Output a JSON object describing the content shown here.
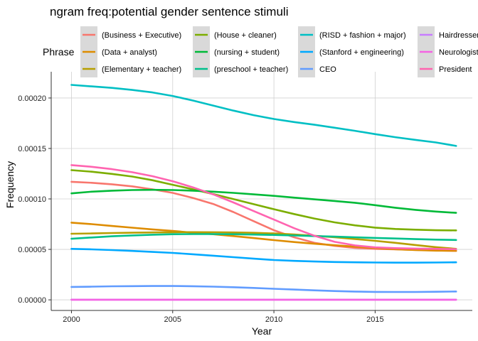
{
  "chart_data": {
    "type": "line",
    "title": "ngram freq:potential gender sentence stimuli",
    "xlabel": "Year",
    "ylabel": "Frequency",
    "xlim": [
      1999,
      2019.8
    ],
    "ylim": [
      -1.05e-05,
      0.000226
    ],
    "x_ticks": [
      2000,
      2005,
      2010,
      2015
    ],
    "x_tick_labels": [
      "2000",
      "2005",
      "2010",
      "2015"
    ],
    "y_ticks": [
      0,
      5e-05,
      0.0001,
      0.00015,
      0.0002
    ],
    "y_tick_labels": [
      "0.00000",
      "0.00005",
      "0.00010",
      "0.00015",
      "0.00020"
    ],
    "grid": true,
    "legend": {
      "title": "Phrase",
      "placement": "top"
    },
    "x": [
      2000,
      2001,
      2002,
      2003,
      2004,
      2005,
      2006,
      2007,
      2008,
      2009,
      2010,
      2011,
      2012,
      2013,
      2014,
      2015,
      2016,
      2017,
      2018,
      2019
    ],
    "series": [
      {
        "name": "(Business + Executive)",
        "color": "#f8766d",
        "values": [
          0.000117,
          0.000116,
          0.0001145,
          0.0001125,
          0.0001095,
          0.000106,
          0.000101,
          9.5e-05,
          8.7e-05,
          7.8e-05,
          6.9e-05,
          6.2e-05,
          5.65e-05,
          5.35e-05,
          5.15e-05,
          5.05e-05,
          5e-05,
          4.95e-05,
          4.9e-05,
          4.85e-05
        ]
      },
      {
        "name": "(Data + analyst)",
        "color": "#de8c00",
        "values": [
          7.65e-05,
          7.5e-05,
          7.32e-05,
          7.15e-05,
          6.98e-05,
          6.83e-05,
          6.65e-05,
          6.5e-05,
          6.32e-05,
          6.12e-05,
          5.92e-05,
          5.73e-05,
          5.56e-05,
          5.41e-05,
          5.27e-05,
          5.14e-05,
          5.02e-05,
          4.93e-05,
          4.88e-05,
          4.86e-05
        ]
      },
      {
        "name": "(Elementary + teacher)",
        "color": "#b79f00",
        "values": [
          6.55e-05,
          6.58e-05,
          6.62e-05,
          6.65e-05,
          6.68e-05,
          6.7e-05,
          6.71e-05,
          6.7e-05,
          6.68e-05,
          6.64e-05,
          6.58e-05,
          6.48e-05,
          6.35e-05,
          6.2e-05,
          6.03e-05,
          5.85e-05,
          5.65e-05,
          5.43e-05,
          5.22e-05,
          5.05e-05
        ]
      },
      {
        "name": "(House + cleaner)",
        "color": "#7cae00",
        "values": [
          0.0001285,
          0.000127,
          0.0001248,
          0.0001222,
          0.0001185,
          0.000114,
          0.0001095,
          0.0001048,
          9.98e-05,
          9.48e-05,
          8.98e-05,
          8.5e-05,
          8.06e-05,
          7.68e-05,
          7.38e-05,
          7.16e-05,
          7.02e-05,
          6.95e-05,
          6.9e-05,
          6.88e-05
        ]
      },
      {
        "name": "(nursing + student)",
        "color": "#00ba38",
        "values": [
          0.0001055,
          0.0001072,
          0.0001082,
          0.0001088,
          0.000109,
          0.0001088,
          0.0001082,
          0.0001072,
          0.000106,
          0.0001045,
          0.000103,
          0.0001013,
          9.96e-05,
          9.8e-05,
          9.62e-05,
          9.38e-05,
          9.13e-05,
          8.92e-05,
          8.75e-05,
          8.62e-05
        ]
      },
      {
        "name": "(preschool + teacher)",
        "color": "#00c08b",
        "values": [
          6.05e-05,
          6.18e-05,
          6.3e-05,
          6.38e-05,
          6.45e-05,
          6.5e-05,
          6.52e-05,
          6.52e-05,
          6.5e-05,
          6.47e-05,
          6.43e-05,
          6.38e-05,
          6.32e-05,
          6.26e-05,
          6.2e-05,
          6.14e-05,
          6.08e-05,
          6.02e-05,
          5.97e-05,
          5.93e-05
        ]
      },
      {
        "name": "(RISD + fashion + major)",
        "color": "#00bfc4",
        "values": [
          0.000213,
          0.0002115,
          0.00021,
          0.000208,
          0.0002055,
          0.000202,
          0.0001975,
          0.0001925,
          0.0001875,
          0.000183,
          0.0001792,
          0.0001762,
          0.0001735,
          0.0001705,
          0.0001675,
          0.0001642,
          0.0001612,
          0.0001585,
          0.000156,
          0.0001525
        ]
      },
      {
        "name": "(Stanford + engineering)",
        "color": "#00a9ff",
        "values": [
          5.05e-05,
          5e-05,
          4.93e-05,
          4.85e-05,
          4.75e-05,
          4.65e-05,
          4.52e-05,
          4.38e-05,
          4.23e-05,
          4.08e-05,
          3.95e-05,
          3.86e-05,
          3.8e-05,
          3.75e-05,
          3.72e-05,
          3.7e-05,
          3.69e-05,
          3.69e-05,
          3.7e-05,
          3.72e-05
        ]
      },
      {
        "name": "CEO",
        "color": "#619cff",
        "values": [
          1.28e-05,
          1.31e-05,
          1.34e-05,
          1.36e-05,
          1.37e-05,
          1.37e-05,
          1.35e-05,
          1.31e-05,
          1.25e-05,
          1.18e-05,
          1.1e-05,
          1.02e-05,
          9.4e-06,
          8.7e-06,
          8.2e-06,
          7.9e-06,
          7.8e-06,
          7.8e-06,
          8e-06,
          8.3e-06
        ]
      },
      {
        "name": "Hairdresser",
        "color": "#c77cff",
        "values": [
          2e-07,
          2e-07,
          2e-07,
          2e-07,
          2e-07,
          2e-07,
          2e-07,
          2e-07,
          2e-07,
          2e-07,
          2e-07,
          2e-07,
          2e-07,
          2e-07,
          2e-07,
          2e-07,
          2e-07,
          2e-07,
          2e-07,
          2e-07
        ]
      },
      {
        "name": "Neurologist",
        "color": "#f564e3",
        "values": [
          1e-07,
          1e-07,
          1e-07,
          1e-07,
          1e-07,
          1e-07,
          1e-07,
          1e-07,
          1e-07,
          1e-07,
          1e-07,
          1e-07,
          1e-07,
          1e-07,
          1e-07,
          1e-07,
          1e-07,
          1e-07,
          1e-07,
          1e-07
        ]
      },
      {
        "name": "President",
        "color": "#ff64b0",
        "values": [
          0.0001335,
          0.0001318,
          0.0001295,
          0.0001265,
          0.0001225,
          0.0001175,
          0.0001115,
          0.0001045,
          9.65e-05,
          8.8e-05,
          7.95e-05,
          7.1e-05,
          6.35e-05,
          5.75e-05,
          5.4e-05,
          5.2e-05,
          5.12e-05,
          5.08e-05,
          5.05e-05,
          5.02e-05
        ]
      }
    ]
  }
}
